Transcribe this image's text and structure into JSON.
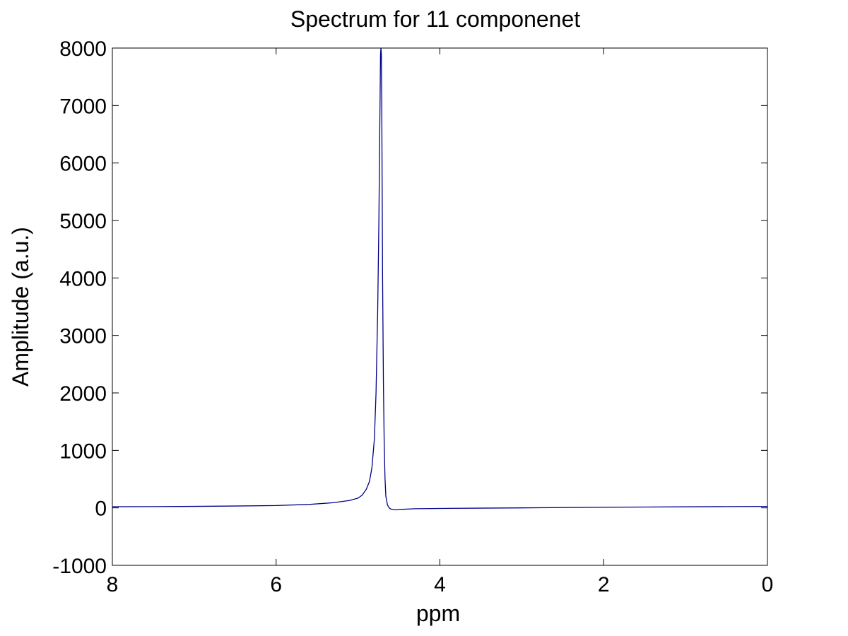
{
  "chart_data": {
    "type": "line",
    "title": "Spectrum for 11 componenet",
    "xlabel": "ppm",
    "ylabel": "Amplitude (a.u.)",
    "xlim": [
      8,
      0
    ],
    "x_reversed": true,
    "ylim": [
      -1000,
      8000
    ],
    "xticks": [
      8,
      6,
      4,
      2,
      0
    ],
    "yticks": [
      -1000,
      0,
      1000,
      2000,
      3000,
      4000,
      5000,
      6000,
      7000,
      8000
    ],
    "grid": false,
    "legend": "none",
    "line_color": "#00008b",
    "series": [
      {
        "x": [
          8.0,
          7.5,
          7.0,
          6.5,
          6.0,
          5.6,
          5.3,
          5.1,
          5.0,
          4.95,
          4.9,
          4.86,
          4.83,
          4.8,
          4.78,
          4.76,
          4.745,
          4.735,
          4.725,
          4.72,
          4.715,
          4.71,
          4.705,
          4.7,
          4.69,
          4.68,
          4.67,
          4.66,
          4.64,
          4.62,
          4.6,
          4.57,
          4.54,
          4.5,
          4.45,
          4.3,
          4.0,
          3.5,
          3.0,
          2.5,
          2.0,
          1.5,
          1.0,
          0.5,
          0.0
        ],
        "y": [
          20,
          22,
          26,
          32,
          40,
          60,
          90,
          130,
          170,
          220,
          320,
          460,
          700,
          1200,
          2000,
          3400,
          5000,
          6500,
          7900,
          8000,
          7900,
          7000,
          5500,
          4000,
          2200,
          1100,
          500,
          200,
          50,
          0,
          -20,
          -30,
          -35,
          -30,
          -25,
          -15,
          -10,
          -5,
          0,
          5,
          10,
          14,
          18,
          22,
          25
        ]
      }
    ]
  }
}
